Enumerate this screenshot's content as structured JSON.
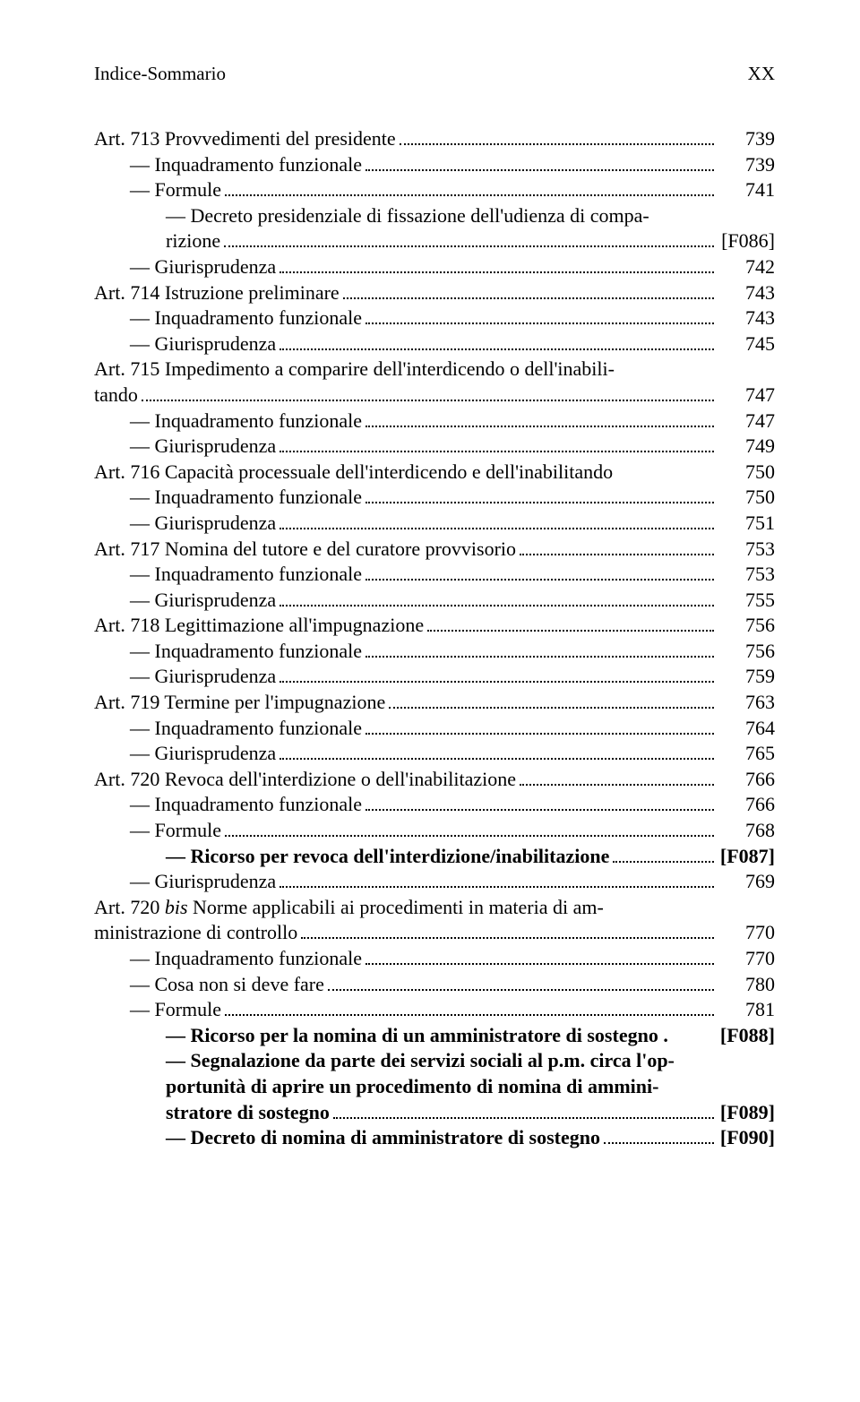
{
  "header": {
    "title": "Indice-Sommario",
    "page_marker": "XX"
  },
  "entries": [
    {
      "kind": "art-2line",
      "line1": "Art. 713 Provvedimenti del presidente",
      "dots1": true,
      "page1": "739",
      "sub": [
        {
          "indent": 1,
          "dash": true,
          "text": "Inquadramento funzionale",
          "page": "739"
        },
        {
          "indent": 1,
          "dash": true,
          "text": "Formule",
          "page": "741"
        },
        {
          "indent": 2,
          "dash": true,
          "wrap": true,
          "line1": "Decreto presidenziale di fissazione dell'udienza di compa-",
          "line2": "rizione",
          "page": "[F086]"
        },
        {
          "indent": 1,
          "dash": true,
          "text": "Giurisprudenza",
          "page": "742"
        }
      ]
    },
    {
      "kind": "art",
      "text": "Art. 714 Istruzione preliminare",
      "page": "743",
      "sub": [
        {
          "indent": 1,
          "dash": true,
          "text": "Inquadramento funzionale",
          "page": "743"
        },
        {
          "indent": 1,
          "dash": true,
          "text": "Giurisprudenza",
          "page": "745"
        }
      ]
    },
    {
      "kind": "art-wrap",
      "line1": "Art. 715 Impedimento a comparire dell'interdicendo o dell'inabili-",
      "line2": "tando",
      "page": "747",
      "sub": [
        {
          "indent": 1,
          "dash": true,
          "text": "Inquadramento funzionale",
          "page": "747"
        },
        {
          "indent": 1,
          "dash": true,
          "text": "Giurisprudenza",
          "page": "749"
        }
      ]
    },
    {
      "kind": "art-nodots",
      "text": "Art. 716 Capacità processuale dell'interdicendo e dell'inabilitando",
      "page": "750",
      "sub": [
        {
          "indent": 1,
          "dash": true,
          "text": "Inquadramento funzionale",
          "page": "750"
        },
        {
          "indent": 1,
          "dash": true,
          "text": "Giurisprudenza",
          "page": "751"
        }
      ]
    },
    {
      "kind": "art",
      "text": "Art. 717 Nomina del tutore e del curatore provvisorio",
      "page": "753",
      "sub": [
        {
          "indent": 1,
          "dash": true,
          "text": "Inquadramento funzionale",
          "page": "753"
        },
        {
          "indent": 1,
          "dash": true,
          "text": "Giurisprudenza",
          "page": "755"
        }
      ]
    },
    {
      "kind": "art",
      "text": "Art. 718 Legittimazione all'impugnazione",
      "page": "756",
      "sub": [
        {
          "indent": 1,
          "dash": true,
          "text": "Inquadramento funzionale",
          "page": "756"
        },
        {
          "indent": 1,
          "dash": true,
          "text": "Giurisprudenza",
          "page": "759"
        }
      ]
    },
    {
      "kind": "art",
      "text": "Art. 719 Termine per l'impugnazione",
      "page": "763",
      "sub": [
        {
          "indent": 1,
          "dash": true,
          "text": "Inquadramento funzionale",
          "page": "764"
        },
        {
          "indent": 1,
          "dash": true,
          "text": "Giurisprudenza",
          "page": "765"
        }
      ]
    },
    {
      "kind": "art",
      "text": "Art. 720 Revoca dell'interdizione o dell'inabilitazione",
      "page": "766",
      "sub": [
        {
          "indent": 1,
          "dash": true,
          "text": "Inquadramento funzionale",
          "page": "766"
        },
        {
          "indent": 1,
          "dash": true,
          "text": "Formule",
          "page": "768"
        },
        {
          "indent": 2,
          "dash": true,
          "bold": true,
          "text": "Ricorso per revoca dell'interdizione/inabilitazione",
          "page": "[F087]"
        },
        {
          "indent": 1,
          "dash": true,
          "text": "Giurisprudenza",
          "page": "769"
        }
      ]
    },
    {
      "kind": "art-wrap-italic",
      "line1_pre": "Art. 720 ",
      "line1_it": "bis",
      "line1_post": " Norme applicabili ai procedimenti in materia di am-",
      "line2": "ministrazione di controllo",
      "page": "770",
      "sub": [
        {
          "indent": 1,
          "dash": true,
          "text": "Inquadramento funzionale",
          "page": "770"
        },
        {
          "indent": 1,
          "dash": true,
          "text": "Cosa non si deve fare",
          "page": "780"
        },
        {
          "indent": 1,
          "dash": true,
          "text": "Formule",
          "page": "781"
        },
        {
          "indent": 2,
          "dash": true,
          "bold": true,
          "nodots": true,
          "suffix": " .",
          "text": "Ricorso per la nomina di un amministratore di sostegno",
          "page": "[F088]"
        },
        {
          "indent": 2,
          "dash": true,
          "bold": true,
          "wrap3": true,
          "l1": "Segnalazione da parte dei servizi sociali al p.m. circa l'op-",
          "l2": "portunità di aprire un procedimento di nomina di ammini-",
          "l3": "stratore di sostegno",
          "page": "[F089]"
        },
        {
          "indent": 2,
          "dash": true,
          "bold": true,
          "text": "Decreto di nomina di amministratore di sostegno",
          "page": "[F090]"
        }
      ]
    }
  ]
}
